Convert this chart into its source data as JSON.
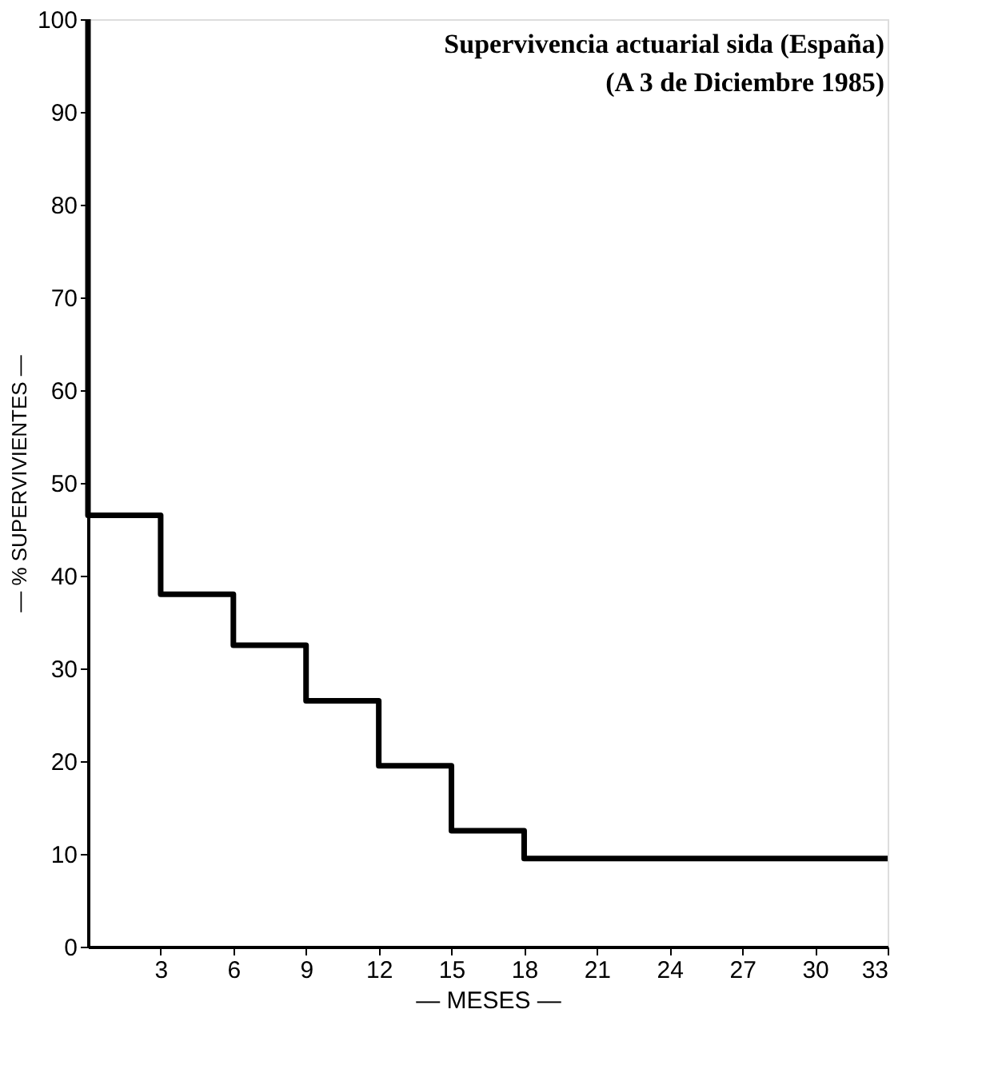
{
  "chart_data": {
    "type": "step",
    "title": "Supervivencia actuarial sida (España)",
    "subtitle": "(A 3 de Diciembre 1985)",
    "xlabel": "— MESES —",
    "ylabel": "— %   SUPERVIVIENTES —",
    "x": [
      0,
      0,
      3,
      6,
      9,
      12,
      15,
      18,
      33
    ],
    "series": [
      {
        "color": "#000000",
        "values": [
          100,
          46.5,
          38,
          32.5,
          26.5,
          19.5,
          12.5,
          9.5,
          9.5
        ]
      }
    ],
    "xlim": [
      0,
      33
    ],
    "xticks": [
      3,
      6,
      9,
      12,
      15,
      18,
      21,
      24,
      27,
      30,
      33
    ],
    "ylim": [
      0,
      100
    ],
    "yticks": [
      0,
      10,
      20,
      30,
      40,
      50,
      60,
      70,
      80,
      90,
      100
    ],
    "grid": false,
    "legend": false,
    "line_style": "solid",
    "marker": "none"
  }
}
